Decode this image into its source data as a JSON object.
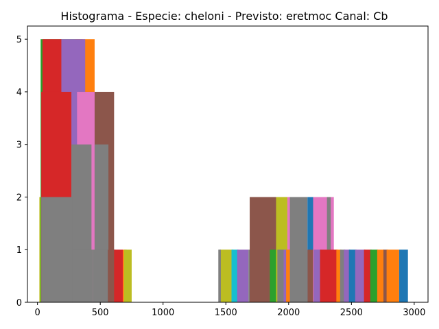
{
  "chart_data": {
    "type": "bar",
    "title": "Histograma - Especie: cheloni - Previsto: eretmoc Canal: Cb",
    "xlabel": "",
    "ylabel": "",
    "xlim": [
      -80,
      3110
    ],
    "ylim": [
      0,
      5.25
    ],
    "xticks": [
      0,
      500,
      1000,
      1500,
      2000,
      2500,
      3000
    ],
    "yticks": [
      0,
      1,
      2,
      3,
      4,
      5
    ],
    "grid": false,
    "legend": "none",
    "bars": [
      {
        "x0": 15,
        "x1": 410,
        "h": 2,
        "color": "#bcbd22"
      },
      {
        "x0": 25,
        "x1": 360,
        "h": 5,
        "color": "#2ca02c"
      },
      {
        "x0": 32,
        "x1": 330,
        "h": 4,
        "color": "#8c564b"
      },
      {
        "x0": 300,
        "x1": 455,
        "h": 5,
        "color": "#ff7f0e"
      },
      {
        "x0": 180,
        "x1": 380,
        "h": 5,
        "color": "#9467bd"
      },
      {
        "x0": 330,
        "x1": 610,
        "h": 4,
        "color": "#8c564b"
      },
      {
        "x0": 315,
        "x1": 455,
        "h": 4,
        "color": "#e377c2"
      },
      {
        "x0": 40,
        "x1": 190,
        "h": 5,
        "color": "#d62728"
      },
      {
        "x0": 30,
        "x1": 270,
        "h": 4,
        "color": "#d62728"
      },
      {
        "x0": 270,
        "x1": 430,
        "h": 3,
        "color": "#7f7f7f"
      },
      {
        "x0": 455,
        "x1": 565,
        "h": 3,
        "color": "#7f7f7f"
      },
      {
        "x0": 440,
        "x1": 455,
        "h": 1,
        "color": "#e377c2"
      },
      {
        "x0": 30,
        "x1": 280,
        "h": 2,
        "color": "#7f7f7f"
      },
      {
        "x0": 280,
        "x1": 440,
        "h": 1,
        "color": "#7f7f7f"
      },
      {
        "x0": 440,
        "x1": 570,
        "h": 1,
        "color": "#7f7f7f"
      },
      {
        "x0": 560,
        "x1": 620,
        "h": 1,
        "color": "#8c564b"
      },
      {
        "x0": 610,
        "x1": 680,
        "h": 1,
        "color": "#d62728"
      },
      {
        "x0": 680,
        "x1": 710,
        "h": 1,
        "color": "#ff7f0e"
      },
      {
        "x0": 690,
        "x1": 750,
        "h": 1,
        "color": "#bcbd22"
      },
      {
        "x0": 1450,
        "x1": 1560,
        "h": 1,
        "color": "#bcbd22"
      },
      {
        "x0": 1440,
        "x1": 1460,
        "h": 1,
        "color": "#7f7f7f"
      },
      {
        "x0": 1545,
        "x1": 1600,
        "h": 1,
        "color": "#17becf"
      },
      {
        "x0": 1590,
        "x1": 1680,
        "h": 1,
        "color": "#9467bd"
      },
      {
        "x0": 1680,
        "x1": 1850,
        "h": 1,
        "color": "#7f7f7f"
      },
      {
        "x0": 1690,
        "x1": 1900,
        "h": 2,
        "color": "#8c564b"
      },
      {
        "x0": 1850,
        "x1": 1900,
        "h": 1,
        "color": "#2ca02c"
      },
      {
        "x0": 1900,
        "x1": 1990,
        "h": 2,
        "color": "#bcbd22"
      },
      {
        "x0": 1910,
        "x1": 1960,
        "h": 1,
        "color": "#7f7f7f"
      },
      {
        "x0": 1960,
        "x1": 2000,
        "h": 1,
        "color": "#9467bd"
      },
      {
        "x0": 1990,
        "x1": 2020,
        "h": 2,
        "color": "#e377c2"
      },
      {
        "x0": 1980,
        "x1": 2010,
        "h": 1,
        "color": "#ff7f0e"
      },
      {
        "x0": 2010,
        "x1": 2150,
        "h": 2,
        "color": "#7f7f7f"
      },
      {
        "x0": 2150,
        "x1": 2200,
        "h": 2,
        "color": "#1f77b4"
      },
      {
        "x0": 2150,
        "x1": 2200,
        "h": 1,
        "color": "#8c564b"
      },
      {
        "x0": 2195,
        "x1": 2310,
        "h": 2,
        "color": "#e377c2"
      },
      {
        "x0": 2200,
        "x1": 2260,
        "h": 1,
        "color": "#9467bd"
      },
      {
        "x0": 2305,
        "x1": 2340,
        "h": 2,
        "color": "#7f7f7f"
      },
      {
        "x0": 2335,
        "x1": 2360,
        "h": 2,
        "color": "#e377c2"
      },
      {
        "x0": 2250,
        "x1": 2390,
        "h": 1,
        "color": "#d62728"
      },
      {
        "x0": 2380,
        "x1": 2420,
        "h": 1,
        "color": "#ff7f0e"
      },
      {
        "x0": 2410,
        "x1": 2450,
        "h": 1,
        "color": "#7f7f7f"
      },
      {
        "x0": 2440,
        "x1": 2490,
        "h": 1,
        "color": "#9467bd"
      },
      {
        "x0": 2480,
        "x1": 2540,
        "h": 1,
        "color": "#1f77b4"
      },
      {
        "x0": 2530,
        "x1": 2610,
        "h": 1,
        "color": "#9467bd"
      },
      {
        "x0": 2600,
        "x1": 2660,
        "h": 1,
        "color": "#d62728"
      },
      {
        "x0": 2650,
        "x1": 2710,
        "h": 1,
        "color": "#2ca02c"
      },
      {
        "x0": 2705,
        "x1": 2760,
        "h": 1,
        "color": "#ff7f0e"
      },
      {
        "x0": 2755,
        "x1": 2790,
        "h": 1,
        "color": "#8c564b"
      },
      {
        "x0": 2780,
        "x1": 2880,
        "h": 1,
        "color": "#ff7f0e"
      },
      {
        "x0": 2880,
        "x1": 2950,
        "h": 1,
        "color": "#1f77b4"
      }
    ]
  }
}
